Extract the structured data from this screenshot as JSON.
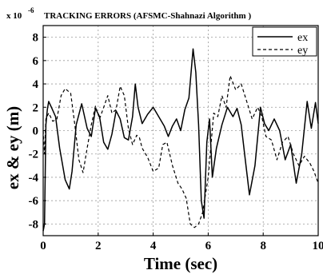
{
  "chart_data": {
    "type": "line",
    "title": "TRACKING ERRORS (AFSMC-Shahnazi Algorithm )",
    "y_multiplier_label": "x 10",
    "y_multiplier_exponent": "-6",
    "xlabel": "Time (sec)",
    "ylabel": "ex & ey (m)",
    "xlim": [
      0,
      10
    ],
    "ylim": [
      -9,
      9
    ],
    "x_ticks": [
      "0",
      "2",
      "4",
      "6",
      "8",
      "10"
    ],
    "y_ticks": [
      "8",
      "6",
      "4",
      "2",
      "0",
      "-2",
      "-4",
      "-6",
      "-8"
    ],
    "grid": true,
    "legend_position": "top-right",
    "series": [
      {
        "name": "ex",
        "style": "solid",
        "color": "#000000",
        "x": [
          0.0,
          0.05,
          0.1,
          0.15,
          0.2,
          0.3,
          0.45,
          0.6,
          0.8,
          0.95,
          1.05,
          1.2,
          1.4,
          1.6,
          1.75,
          1.9,
          2.05,
          2.2,
          2.35,
          2.5,
          2.65,
          2.8,
          2.95,
          3.1,
          3.25,
          3.35,
          3.45,
          3.6,
          3.8,
          4.0,
          4.2,
          4.4,
          4.55,
          4.7,
          4.85,
          5.0,
          5.15,
          5.3,
          5.45,
          5.55,
          5.65,
          5.75,
          5.85,
          5.95,
          6.05,
          6.15,
          6.3,
          6.5,
          6.7,
          6.9,
          7.05,
          7.2,
          7.35,
          7.5,
          7.7,
          7.9,
          8.05,
          8.2,
          8.4,
          8.6,
          8.8,
          9.0,
          9.2,
          9.4,
          9.6,
          9.75,
          9.9,
          10.0
        ],
        "values": [
          -8.6,
          -8.0,
          0.5,
          1.8,
          2.5,
          2.0,
          1.2,
          -1.5,
          -4.2,
          -5.0,
          -3.5,
          0.5,
          2.3,
          0.2,
          -0.5,
          1.9,
          1.2,
          -1.0,
          -1.6,
          -0.3,
          1.7,
          1.0,
          -0.6,
          -0.8,
          1.2,
          4.0,
          2.0,
          0.6,
          1.4,
          2.0,
          1.2,
          0.4,
          -0.5,
          0.4,
          1.0,
          0.0,
          1.8,
          2.8,
          7.0,
          5.0,
          0.5,
          -6.0,
          -7.5,
          -1.0,
          1.0,
          -4.0,
          -1.5,
          0.5,
          2.0,
          1.2,
          1.9,
          0.5,
          -2.5,
          -5.5,
          -3.0,
          2.0,
          0.6,
          0.0,
          1.0,
          0.0,
          -2.5,
          -1.2,
          -4.5,
          -2.0,
          2.5,
          0.2,
          2.4,
          0.6
        ]
      },
      {
        "name": "ey",
        "style": "dashed",
        "color": "#000000",
        "x": [
          0.0,
          0.05,
          0.1,
          0.2,
          0.35,
          0.5,
          0.65,
          0.8,
          1.0,
          1.15,
          1.3,
          1.45,
          1.6,
          1.75,
          1.9,
          2.05,
          2.2,
          2.35,
          2.5,
          2.65,
          2.8,
          2.95,
          3.1,
          3.25,
          3.4,
          3.5,
          3.6,
          3.8,
          4.0,
          4.2,
          4.35,
          4.5,
          4.7,
          4.9,
          5.05,
          5.2,
          5.35,
          5.5,
          5.65,
          5.8,
          6.0,
          6.2,
          6.35,
          6.5,
          6.65,
          6.8,
          7.0,
          7.2,
          7.4,
          7.6,
          7.8,
          7.95,
          8.1,
          8.3,
          8.5,
          8.7,
          8.9,
          9.1,
          9.3,
          9.5,
          9.7,
          9.85,
          10.0
        ],
        "values": [
          0.0,
          -2.0,
          1.0,
          1.5,
          0.8,
          1.0,
          3.0,
          3.6,
          3.2,
          0.5,
          -2.5,
          -3.6,
          -1.5,
          0.5,
          2.1,
          1.0,
          2.0,
          3.0,
          1.5,
          1.8,
          3.8,
          3.0,
          0.2,
          -1.2,
          -0.4,
          -0.6,
          -1.5,
          -2.3,
          -3.5,
          -3.2,
          -1.2,
          -1.0,
          -3.0,
          -4.5,
          -5.0,
          -5.8,
          -8.0,
          -8.3,
          -8.0,
          -7.0,
          -4.0,
          1.5,
          1.2,
          3.0,
          2.0,
          4.7,
          3.5,
          4.0,
          2.5,
          1.0,
          2.0,
          1.2,
          -0.5,
          -0.8,
          -2.5,
          -1.0,
          -0.5,
          -2.0,
          -3.0,
          -2.2,
          -2.8,
          -3.5,
          -4.5
        ]
      }
    ]
  }
}
